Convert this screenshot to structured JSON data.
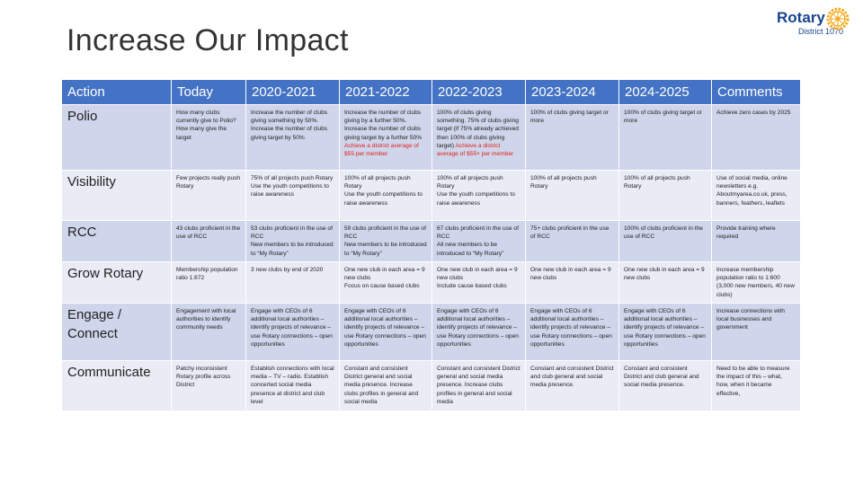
{
  "header": {
    "title": "Increase Our Impact"
  },
  "logo": {
    "name": "Rotary",
    "district": "District 1070"
  },
  "table": {
    "columns": [
      "Action",
      "Today",
      "2020-2021",
      "2021-2022",
      "2022-2023",
      "2023-2024",
      "2024-2025",
      "Comments"
    ],
    "rows": [
      [
        "Polio",
        "How many clubs currently give to Polio? How many give the target",
        "Increase the number of clubs giving something by 50%. Increase the number of clubs giving target by 50%",
        {
          "text": "Increase the number of clubs giving by a further 50%. Increase the number of clubs giving target by a further 50% ",
          "highlight": "Achieve a district average of $55 per member"
        },
        {
          "text": "100% of clubs giving something. 75% of clubs giving target (if 75% already achieved then 100% of clubs giving target) ",
          "highlight": "Achieve a district average of $55+ per member"
        },
        "100% of clubs giving target or more",
        "100% of clubs giving target or more",
        "Achieve zero cases by 2025"
      ],
      [
        "Visibility",
        "Few projects really push Rotary",
        "75% of all projects push Rotary\nUse the youth competitions to raise awareness",
        "100% of all projects push Rotary\nUse the youth competitions to raise awareness",
        "100% of all projects push Rotary\nUse the youth competitions to raise awareness",
        "100% of all projects push Rotary",
        "100% of all projects push Rotary",
        "Use of social media, online newsletters e.g. Aboutmyarea.co.uk, press, banners, feathers, leaflets"
      ],
      [
        "RCC",
        "43 clubs proficient in the use of RCC",
        "53 clubs proficient in the use of RCC\nNew members to be introduced to “My Rotary”",
        "59 clubs proficient in the use of RCC\nNew members to be introduced to “My Rotary”",
        "67 clubs proficient in the use of RCC\nAll new members to be introduced to “My Rotary”",
        "75+ clubs proficient in the use of RCC",
        "100% of clubs proficient in the use of RCC",
        "Provide training where required"
      ],
      [
        "Grow Rotary",
        "Membership population ratio 1:872",
        "3 new clubs by end of 2020",
        "One new club in each area = 9 new clubs\nFocus on cause based clubs",
        "One new club in each area = 9 new clubs\nInclude cause based clubs",
        "One new club in each area = 9 new clubs",
        "One new club in each area = 9 new clubs",
        "Increase membership population ratio to 1:600 (3,000 new members, 40 new clubs)"
      ],
      [
        "Engage / Connect",
        "Engagement with local authorities to identify community needs",
        "Engage with CEOs of 6 additional local authorities – identify projects of relevance – use Rotary connections – open opportunities",
        "Engage with CEOs of 6 additional local authorities – identify projects of relevance – use Rotary connections – open opportunities",
        "Engage with CEOs of 6 additional local authorities – identify projects of relevance – use Rotary connections – open opportunities",
        "Engage with CEOs of 6 additional local authorities – identify projects of relevance – use Rotary connections – open opportunities",
        "Engage with CEOs of 6 additional local authorities – identify projects of relevance – use Rotary connections – open opportunities",
        "Increase connections with local businesses and government"
      ],
      [
        "Communicate",
        "Patchy inconsistent Rotary profile across District",
        "Establish connections with local media – TV – radio. Establish concerted social media presence at district and club level",
        "Constant and consistent District general and social media presence. Increase clubs profiles in general and social media",
        "Constant and consistent District general and social media presence. Increase clubs profiles in general and social media",
        "Constant and consistent District and club general and social media presence.",
        "Constant and consistent District and club general and social media presence.",
        "Need to be able to measure the impact of this – what, how, when it became effective,"
      ]
    ]
  }
}
